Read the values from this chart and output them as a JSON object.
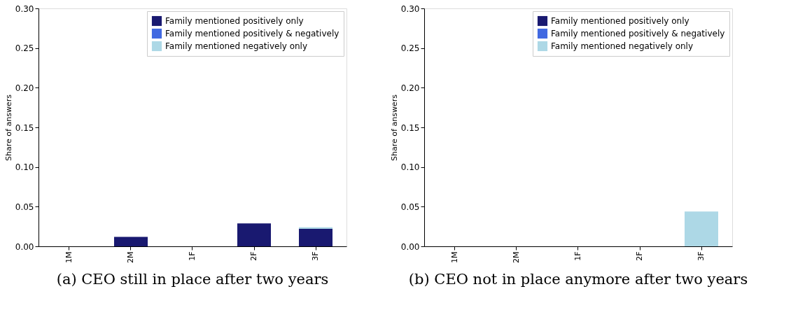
{
  "chart_data": [
    {
      "type": "bar",
      "title": "(a) CEO still in place after two years",
      "ylabel": "Share of answers",
      "categories": [
        "1M",
        "2M",
        "1F",
        "2F",
        "3F"
      ],
      "stacked": true,
      "ylim": [
        0,
        0.3
      ],
      "yticks": [
        {
          "value": 0,
          "label": "0.00"
        },
        {
          "value": 0.05,
          "label": "0.05"
        },
        {
          "value": 0.1,
          "label": "0.10"
        },
        {
          "value": 0.15,
          "label": "0.15"
        },
        {
          "value": 0.2,
          "label": "0.20"
        },
        {
          "value": 0.25,
          "label": "0.25"
        },
        {
          "value": 0.3,
          "label": "0.30"
        }
      ],
      "grid": false,
      "legend": "top right",
      "series": [
        {
          "name": "Family mentioned positively only",
          "color": "#191970",
          "values": [
            0,
            0.012,
            0,
            0.029,
            0.022
          ]
        },
        {
          "name": "Family mentioned positively & negatively",
          "color": "#4169e1",
          "values": [
            0,
            0,
            0,
            0,
            0
          ]
        },
        {
          "name": "Family mentioned negatively only",
          "color": "#add8e6",
          "values": [
            0,
            0,
            0,
            0,
            0.002
          ]
        }
      ]
    },
    {
      "type": "bar",
      "title": "(b) CEO not in place anymore after two years",
      "ylabel": "Share of answers",
      "categories": [
        "1M",
        "2M",
        "1F",
        "2F",
        "3F"
      ],
      "stacked": true,
      "ylim": [
        0,
        0.3
      ],
      "yticks": [
        {
          "value": 0,
          "label": "0.00"
        },
        {
          "value": 0.05,
          "label": "0.05"
        },
        {
          "value": 0.1,
          "label": "0.10"
        },
        {
          "value": 0.15,
          "label": "0.15"
        },
        {
          "value": 0.2,
          "label": "0.20"
        },
        {
          "value": 0.25,
          "label": "0.25"
        },
        {
          "value": 0.3,
          "label": "0.30"
        }
      ],
      "grid": false,
      "legend": "top right",
      "series": [
        {
          "name": "Family mentioned positively only",
          "color": "#191970",
          "values": [
            0,
            0,
            0,
            0,
            0
          ]
        },
        {
          "name": "Family mentioned positively & negatively",
          "color": "#4169e1",
          "values": [
            0,
            0,
            0,
            0,
            0
          ]
        },
        {
          "name": "Family mentioned negatively only",
          "color": "#add8e6",
          "values": [
            0,
            0,
            0,
            0,
            0.044
          ]
        }
      ]
    }
  ]
}
